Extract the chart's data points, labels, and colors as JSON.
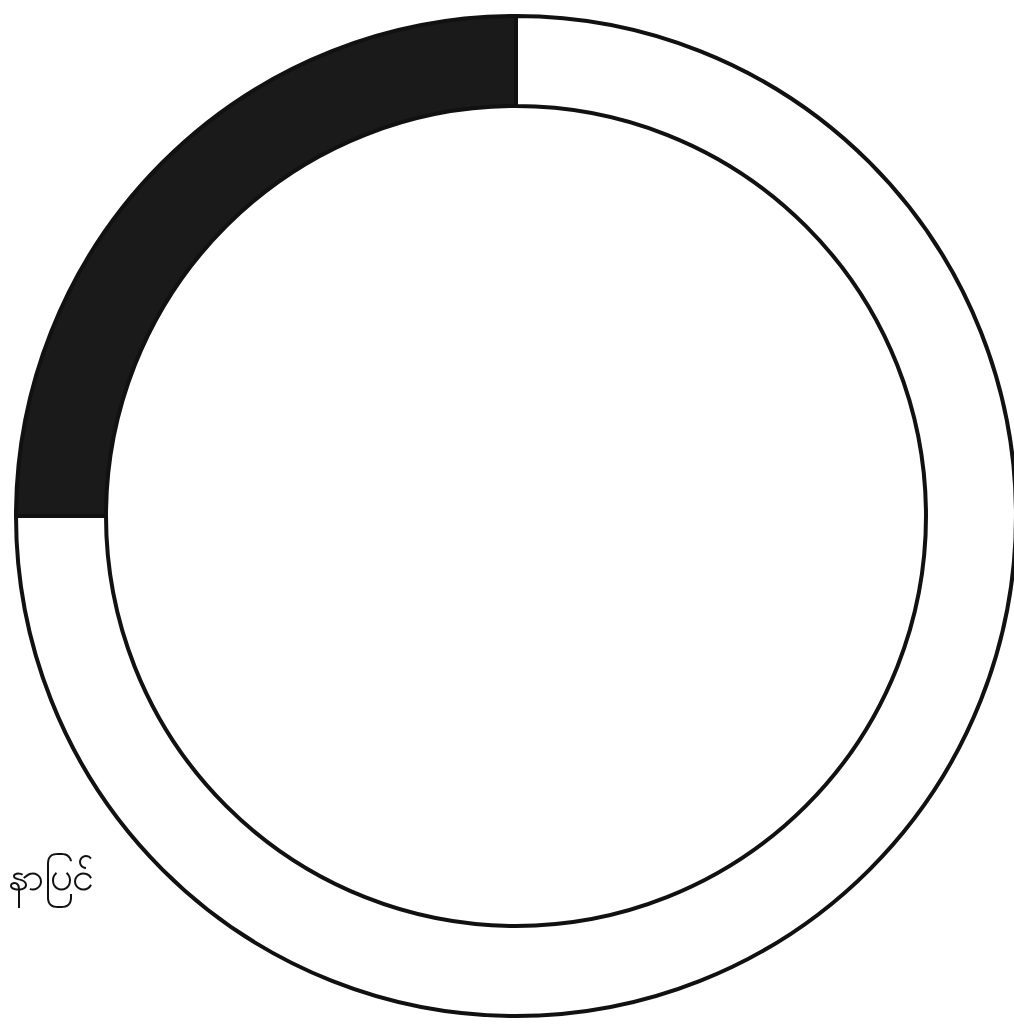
{
  "chart_data": {
    "type": "donut",
    "categories": [
      null,
      null
    ],
    "values": [
      25,
      75
    ],
    "colors": [
      "#1a1a1a",
      "#ffffff"
    ],
    "annotations": [
      "နာပြင်"
    ]
  }
}
